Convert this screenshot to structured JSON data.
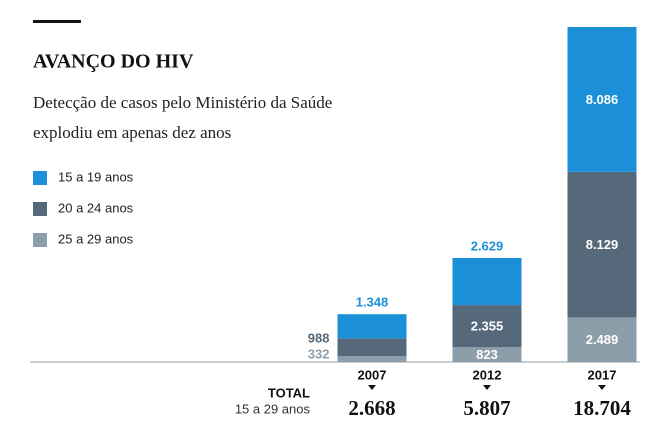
{
  "chart_data": {
    "type": "stacked_bar",
    "title": "AVANÇO DO HIV",
    "subtitle": [
      "Detecção de casos pelo Ministério da Saúde",
      "explodiu em apenas dez anos"
    ],
    "categories": [
      "2007",
      "2012",
      "2017"
    ],
    "series": [
      {
        "name": "25 a 29 anos",
        "color": "#8d9eab",
        "label_color": "#8d9eab",
        "values": [
          332,
          823,
          2489
        ],
        "value_labels": [
          "332",
          "823",
          "2.489"
        ]
      },
      {
        "name": "20 a 24 anos",
        "color": "#56697a",
        "label_color": "#56697a",
        "values": [
          988,
          2355,
          8129
        ],
        "value_labels": [
          "988",
          "2.355",
          "8.129"
        ]
      },
      {
        "name": "15 a 19 anos",
        "color": "#1b90d8",
        "label_color": "#1b90d8",
        "values": [
          1348,
          2629,
          8086
        ],
        "value_labels": [
          "1.348",
          "2.629",
          "8.086"
        ]
      }
    ],
    "total": {
      "label": "TOTAL",
      "sublabel": "15 a 29 anos",
      "values": [
        2668,
        5807,
        18704
      ],
      "value_labels": [
        "2.668",
        "5.807",
        "18.704"
      ]
    }
  }
}
